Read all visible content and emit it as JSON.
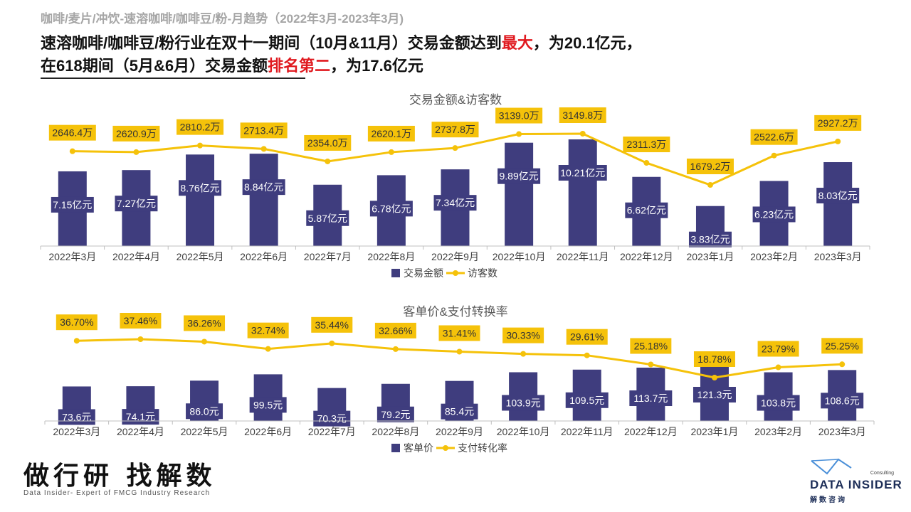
{
  "header": {
    "supertitle": "咖啡/麦片/冲饮-速溶咖啡/咖啡豆/粉-月趋势（2022年3月-2023年3月)",
    "line1_a": "速溶咖啡/咖啡豆/粉行业在双十一期间（10月&11月）交易金额达到",
    "line1_highlight": "最大",
    "line1_b": "，为20.1亿元，",
    "line2_a": "在618期间（5月&6月）交易金额",
    "line2_highlight": "排名第二",
    "line2_b": "，为17.6亿元"
  },
  "footer": {
    "slogan_cn": "做行研 找解数",
    "slogan_en": "Data Insider- Expert of FMCG Industry Research",
    "logo_name": "DATA INSIDER",
    "logo_sub": "Consulting",
    "logo_cn": "解数咨询"
  },
  "colors": {
    "bar": "#3f3d7e",
    "line": "#f5c20a",
    "label_box": "#f5c20a",
    "highlight": "#e0191f"
  },
  "chart_data": [
    {
      "type": "bar+line",
      "title": "交易金额&访客数",
      "categories": [
        "2022年3月",
        "2022年4月",
        "2022年5月",
        "2022年6月",
        "2022年7月",
        "2022年8月",
        "2022年9月",
        "2022年10月",
        "2022年11月",
        "2022年12月",
        "2023年1月",
        "2023年2月",
        "2023年3月"
      ],
      "series": [
        {
          "name": "交易金额",
          "kind": "bar",
          "values": [
            7.15,
            7.27,
            8.76,
            8.84,
            5.87,
            6.78,
            7.34,
            9.89,
            10.21,
            6.62,
            3.83,
            6.23,
            8.03
          ],
          "labels": [
            "7.15亿元",
            "7.27亿元",
            "8.76亿元",
            "8.84亿元",
            "5.87亿元",
            "6.78亿元",
            "7.34亿元",
            "9.89亿元",
            "10.21亿元",
            "6.62亿元",
            "3.83亿元",
            "6.23亿元",
            "8.03亿元"
          ]
        },
        {
          "name": "访客数",
          "kind": "line",
          "values": [
            2646.4,
            2620.9,
            2810.2,
            2713.4,
            2354.0,
            2620.1,
            2737.8,
            3139.0,
            3149.8,
            2311.3,
            1679.2,
            2522.6,
            2927.2
          ],
          "labels": [
            "2646.4万",
            "2620.9万",
            "2810.2万",
            "2713.4万",
            "2354.0万",
            "2620.1万",
            "2737.8万",
            "3139.0万",
            "3149.8万",
            "2311.3万",
            "1679.2万",
            "2522.6万",
            "2927.2万"
          ]
        }
      ],
      "legend": "bottom"
    },
    {
      "type": "bar+line",
      "title": "客单价&支付转换率",
      "categories": [
        "2022年3月",
        "2022年4月",
        "2022年5月",
        "2022年6月",
        "2022年7月",
        "2022年8月",
        "2022年9月",
        "2022年10月",
        "2022年11月",
        "2022年12月",
        "2023年1月",
        "2023年2月",
        "2023年3月"
      ],
      "series": [
        {
          "name": "客单价",
          "kind": "bar",
          "values": [
            73.6,
            74.1,
            86.0,
            99.5,
            70.3,
            79.2,
            85.4,
            103.9,
            109.5,
            113.7,
            121.3,
            103.8,
            108.6
          ],
          "labels": [
            "73.6元",
            "74.1元",
            "86.0元",
            "99.5元",
            "70.3元",
            "79.2元",
            "85.4元",
            "103.9元",
            "109.5元",
            "113.7元",
            "121.3元",
            "103.8元",
            "108.6元"
          ]
        },
        {
          "name": "支付转化率",
          "kind": "line",
          "values": [
            36.7,
            37.46,
            36.26,
            32.74,
            35.44,
            32.66,
            31.41,
            30.33,
            29.61,
            25.18,
            18.78,
            23.79,
            25.25
          ],
          "labels": [
            "36.70%",
            "37.46%",
            "36.26%",
            "32.74%",
            "35.44%",
            "32.66%",
            "31.41%",
            "30.33%",
            "29.61%",
            "25.18%",
            "18.78%",
            "23.79%",
            "25.25%"
          ]
        }
      ],
      "legend": "bottom"
    }
  ]
}
